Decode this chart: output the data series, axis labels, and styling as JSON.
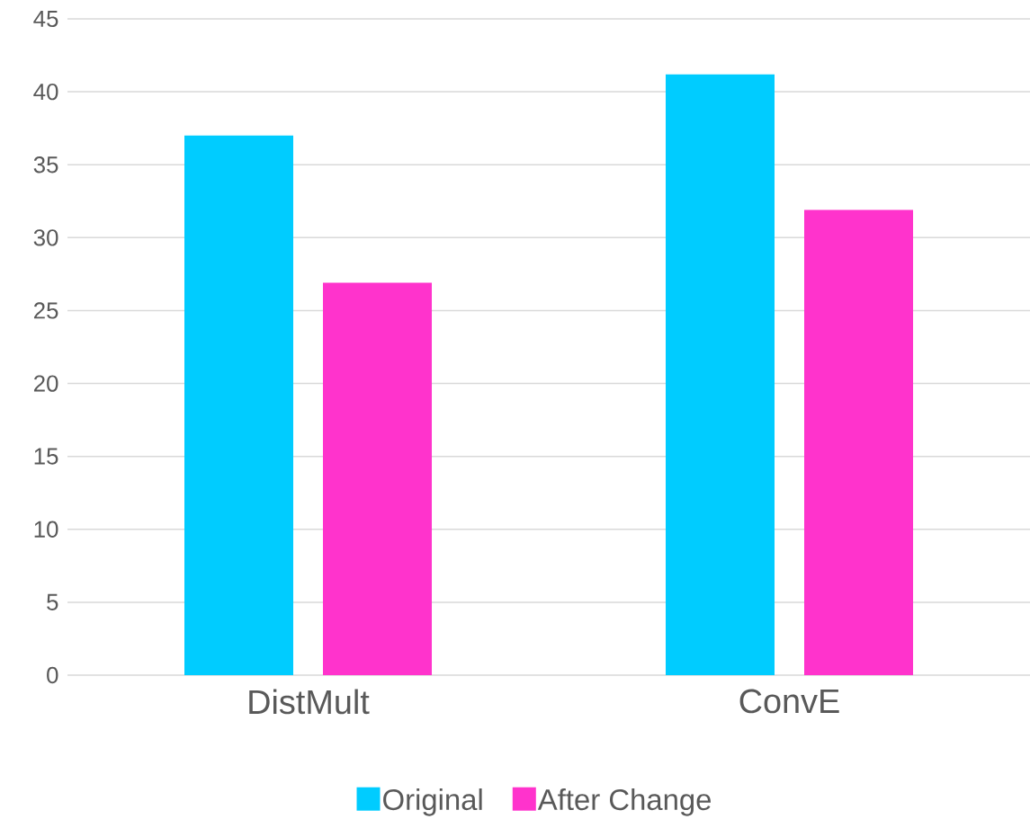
{
  "chart_data": {
    "type": "bar",
    "categories": [
      "DistMult",
      "ConvE"
    ],
    "series": [
      {
        "name": "Original",
        "color": "#00ccff",
        "values": [
          37.0,
          41.2
        ]
      },
      {
        "name": "After Change",
        "color": "#ff33cc",
        "values": [
          26.9,
          31.9
        ]
      }
    ],
    "ylim": [
      0,
      45
    ],
    "yticks": [
      0,
      5,
      10,
      15,
      20,
      25,
      30,
      35,
      40,
      45
    ],
    "grid": "y",
    "legend": "bottom"
  }
}
